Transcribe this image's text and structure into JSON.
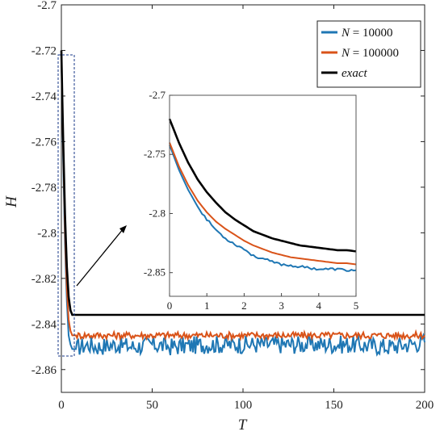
{
  "chart_data": {
    "type": "line",
    "xlabel": "T",
    "ylabel": "H",
    "xlim": [
      0,
      200
    ],
    "ylim": [
      -2.87,
      -2.7
    ],
    "xticks": [
      "0",
      "50",
      "100",
      "150",
      "200"
    ],
    "yticks": [
      "-2.7",
      "-2.72",
      "-2.74",
      "-2.76",
      "-2.78",
      "-2.8",
      "-2.82",
      "-2.84",
      "-2.86"
    ],
    "legend_position": "top-right",
    "grid": false,
    "series": [
      {
        "name_prefix": "N",
        "name_value": "= 10000",
        "color": "#1f77b4",
        "x": [
          0,
          1,
          2,
          3,
          4,
          5,
          6,
          8,
          10,
          15,
          20,
          30,
          40,
          50,
          60,
          80,
          100,
          108,
          120,
          140,
          160,
          180,
          200
        ],
        "y": [
          -2.72,
          -2.77,
          -2.805,
          -2.83,
          -2.845,
          -2.849,
          -2.851,
          -2.851,
          -2.85,
          -2.849,
          -2.85,
          -2.849,
          -2.85,
          -2.849,
          -2.85,
          -2.849,
          -2.849,
          -2.849,
          -2.849,
          -2.849,
          -2.849,
          -2.85,
          -2.848
        ]
      },
      {
        "name_prefix": "N",
        "name_value": "= 100000",
        "color": "#d95319",
        "x": [
          0,
          1,
          2,
          3,
          4,
          5,
          6,
          8,
          10,
          20,
          40,
          60,
          80,
          100,
          120,
          140,
          160,
          180,
          200
        ],
        "y": [
          -2.72,
          -2.765,
          -2.8,
          -2.825,
          -2.838,
          -2.843,
          -2.845,
          -2.845,
          -2.845,
          -2.845,
          -2.845,
          -2.845,
          -2.845,
          -2.845,
          -2.845,
          -2.845,
          -2.845,
          -2.845,
          -2.845
        ]
      },
      {
        "name": "exact",
        "color": "#000000",
        "x": [
          0,
          1,
          2,
          3,
          4,
          5,
          6,
          8,
          10,
          20,
          50,
          100,
          150,
          200
        ],
        "y": [
          -2.72,
          -2.76,
          -2.792,
          -2.815,
          -2.828,
          -2.834,
          -2.836,
          -2.836,
          -2.836,
          -2.836,
          -2.836,
          -2.836,
          -2.836,
          -2.836
        ]
      }
    ],
    "inset": {
      "xlim": [
        0,
        5
      ],
      "ylim": [
        -2.87,
        -2.7
      ],
      "xticks": [
        "0",
        "1",
        "2",
        "3",
        "4",
        "5"
      ],
      "yticks": [
        "-2.7",
        "-2.75",
        "-2.8",
        "-2.85"
      ],
      "series": [
        {
          "color": "#1f77b4",
          "x": [
            0,
            0.25,
            0.5,
            0.75,
            1,
            1.25,
            1.5,
            1.75,
            2,
            2.25,
            2.5,
            2.75,
            3,
            3.25,
            3.5,
            3.75,
            4,
            4.25,
            4.5,
            4.75,
            5
          ],
          "y": [
            -2.742,
            -2.763,
            -2.78,
            -2.794,
            -2.805,
            -2.814,
            -2.821,
            -2.826,
            -2.83,
            -2.836,
            -2.838,
            -2.841,
            -2.843,
            -2.844,
            -2.845,
            -2.846,
            -2.847,
            -2.847,
            -2.847,
            -2.848,
            -2.848
          ]
        },
        {
          "color": "#d95319",
          "x": [
            0,
            0.25,
            0.5,
            0.75,
            1,
            1.25,
            1.5,
            1.75,
            2,
            2.25,
            2.5,
            2.75,
            3,
            3.25,
            3.5,
            3.75,
            4,
            4.25,
            4.5,
            4.75,
            5
          ],
          "y": [
            -2.74,
            -2.76,
            -2.776,
            -2.789,
            -2.799,
            -2.807,
            -2.813,
            -2.818,
            -2.823,
            -2.827,
            -2.83,
            -2.833,
            -2.835,
            -2.837,
            -2.838,
            -2.839,
            -2.84,
            -2.841,
            -2.842,
            -2.842,
            -2.843
          ]
        },
        {
          "color": "#000000",
          "x": [
            0,
            0.25,
            0.5,
            0.75,
            1,
            1.25,
            1.5,
            1.75,
            2,
            2.25,
            2.5,
            2.75,
            3,
            3.25,
            3.5,
            3.75,
            4,
            4.25,
            4.5,
            4.75,
            5
          ],
          "y": [
            -2.72,
            -2.74,
            -2.757,
            -2.771,
            -2.782,
            -2.791,
            -2.799,
            -2.805,
            -2.81,
            -2.815,
            -2.818,
            -2.821,
            -2.823,
            -2.825,
            -2.827,
            -2.828,
            -2.829,
            -2.83,
            -2.831,
            -2.831,
            -2.832
          ]
        }
      ]
    }
  }
}
